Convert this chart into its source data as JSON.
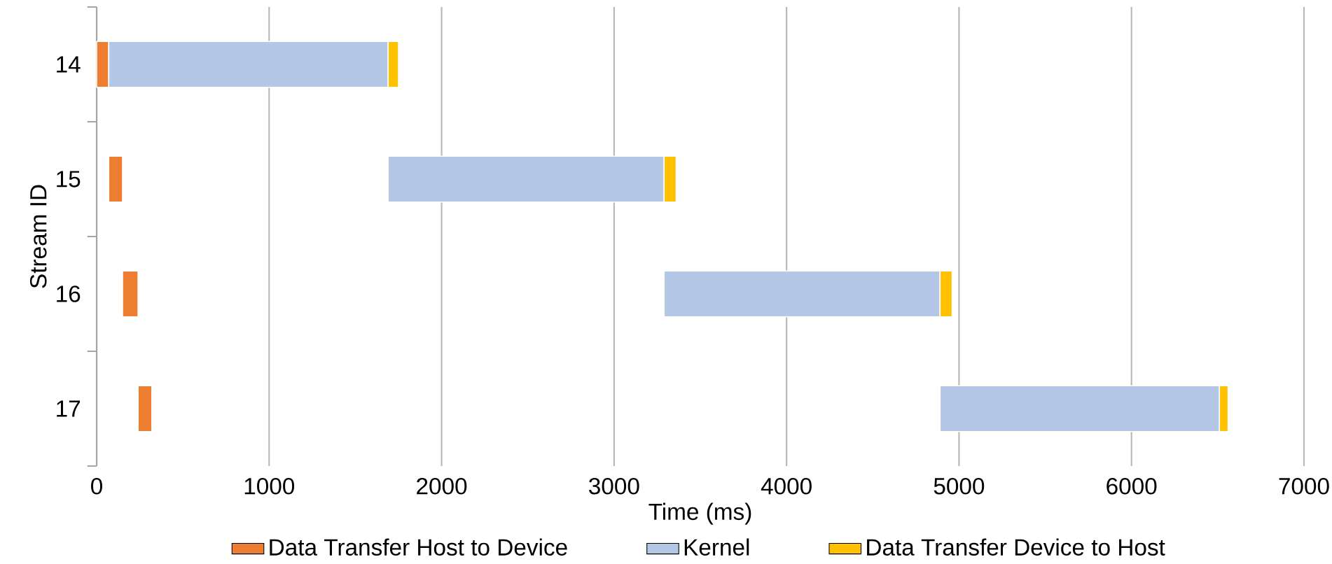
{
  "chart_data": {
    "type": "bar",
    "orientation": "horizontal",
    "xlabel": "Time (ms)",
    "ylabel": "Stream ID",
    "categories": [
      "14",
      "15",
      "16",
      "17"
    ],
    "xlim": [
      0,
      7000
    ],
    "xticks": [
      0,
      1000,
      2000,
      3000,
      4000,
      5000,
      6000,
      7000
    ],
    "grid": "x",
    "legend": "bottom",
    "series": [
      {
        "name": "Data Transfer Host to Device",
        "color": "#ed7d31",
        "base": [
          0,
          70,
          150,
          240
        ],
        "values": [
          70,
          80,
          90,
          80
        ]
      },
      {
        "name": "Kernel",
        "color": "#b4c7e7",
        "base": [
          70,
          1690,
          3290,
          4890
        ],
        "values": [
          1620,
          1600,
          1600,
          1620
        ]
      },
      {
        "name": "Data Transfer Device to Host",
        "color": "#ffc000",
        "base": [
          1690,
          3290,
          4890,
          6510
        ],
        "values": [
          60,
          70,
          70,
          50
        ]
      }
    ]
  }
}
